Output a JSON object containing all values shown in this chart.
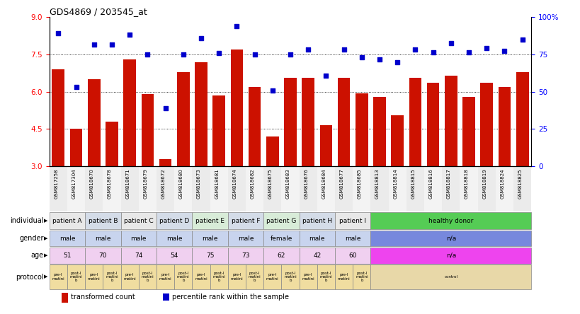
{
  "title": "GDS4869 / 203545_at",
  "samples": [
    "GSM817258",
    "GSM817304",
    "GSM818670",
    "GSM818678",
    "GSM818671",
    "GSM818679",
    "GSM818672",
    "GSM818680",
    "GSM818673",
    "GSM818681",
    "GSM818674",
    "GSM818682",
    "GSM818675",
    "GSM818683",
    "GSM818676",
    "GSM818684",
    "GSM818677",
    "GSM818685",
    "GSM818813",
    "GSM818814",
    "GSM818815",
    "GSM818816",
    "GSM818817",
    "GSM818818",
    "GSM818819",
    "GSM818824",
    "GSM818825"
  ],
  "bar_values": [
    6.9,
    4.5,
    6.5,
    4.8,
    7.3,
    5.9,
    3.3,
    6.8,
    7.2,
    5.85,
    7.7,
    6.2,
    4.2,
    6.55,
    6.55,
    4.65,
    6.55,
    5.95,
    5.8,
    5.05,
    6.55,
    6.35,
    6.65,
    5.8,
    6.35,
    6.2,
    6.8
  ],
  "dot_values": [
    8.35,
    6.2,
    7.9,
    7.9,
    8.3,
    7.5,
    5.35,
    7.5,
    8.15,
    7.55,
    8.65,
    7.5,
    6.05,
    7.5,
    7.7,
    6.65,
    7.7,
    7.4,
    7.3,
    7.2,
    7.7,
    7.6,
    7.95,
    7.6,
    7.75,
    7.65,
    8.1
  ],
  "bar_color": "#cc1100",
  "dot_color": "#0000cc",
  "ylim_left": [
    3,
    9
  ],
  "yticks_left": [
    3,
    4.5,
    6,
    7.5,
    9
  ],
  "ylim_right": [
    0,
    100
  ],
  "yticks_right": [
    0,
    25,
    50,
    75,
    100
  ],
  "ytick_labels_right": [
    "0",
    "25",
    "50",
    "75",
    "100%"
  ],
  "hlines": [
    4.5,
    6.0,
    7.5
  ],
  "individual_groups": [
    {
      "label": "patient A",
      "start": 0,
      "end": 2,
      "color": "#e8e8e8"
    },
    {
      "label": "patient B",
      "start": 2,
      "end": 4,
      "color": "#d4dce8"
    },
    {
      "label": "patient C",
      "start": 4,
      "end": 6,
      "color": "#e8e8e8"
    },
    {
      "label": "patient D",
      "start": 6,
      "end": 8,
      "color": "#d4dce8"
    },
    {
      "label": "patient E",
      "start": 8,
      "end": 10,
      "color": "#d8ecd8"
    },
    {
      "label": "patient F",
      "start": 10,
      "end": 12,
      "color": "#d4dce8"
    },
    {
      "label": "patient G",
      "start": 12,
      "end": 14,
      "color": "#d8ecd8"
    },
    {
      "label": "patient H",
      "start": 14,
      "end": 16,
      "color": "#d4dce8"
    },
    {
      "label": "patient I",
      "start": 16,
      "end": 18,
      "color": "#e8e8e8"
    },
    {
      "label": "healthy donor",
      "start": 18,
      "end": 27,
      "color": "#55cc55"
    }
  ],
  "gender_groups": [
    {
      "label": "male",
      "start": 0,
      "end": 2,
      "color": "#c8d4ee"
    },
    {
      "label": "male",
      "start": 2,
      "end": 4,
      "color": "#c8d4ee"
    },
    {
      "label": "male",
      "start": 4,
      "end": 6,
      "color": "#c8d4ee"
    },
    {
      "label": "male",
      "start": 6,
      "end": 8,
      "color": "#c8d4ee"
    },
    {
      "label": "male",
      "start": 8,
      "end": 10,
      "color": "#c8d4ee"
    },
    {
      "label": "male",
      "start": 10,
      "end": 12,
      "color": "#c8d4ee"
    },
    {
      "label": "female",
      "start": 12,
      "end": 14,
      "color": "#c8d4ee"
    },
    {
      "label": "male",
      "start": 14,
      "end": 16,
      "color": "#c8d4ee"
    },
    {
      "label": "male",
      "start": 16,
      "end": 18,
      "color": "#c8d4ee"
    },
    {
      "label": "n/a",
      "start": 18,
      "end": 27,
      "color": "#7788dd"
    }
  ],
  "age_groups": [
    {
      "label": "51",
      "start": 0,
      "end": 2,
      "color": "#f0d0f0"
    },
    {
      "label": "70",
      "start": 2,
      "end": 4,
      "color": "#f0d0f0"
    },
    {
      "label": "74",
      "start": 4,
      "end": 6,
      "color": "#f0d0f0"
    },
    {
      "label": "54",
      "start": 6,
      "end": 8,
      "color": "#f0d0f0"
    },
    {
      "label": "75",
      "start": 8,
      "end": 10,
      "color": "#f0d0f0"
    },
    {
      "label": "73",
      "start": 10,
      "end": 12,
      "color": "#f0d0f0"
    },
    {
      "label": "62",
      "start": 12,
      "end": 14,
      "color": "#f0d0f0"
    },
    {
      "label": "42",
      "start": 14,
      "end": 16,
      "color": "#f0d0f0"
    },
    {
      "label": "60",
      "start": 16,
      "end": 18,
      "color": "#f0d0f0"
    },
    {
      "label": "n/a",
      "start": 18,
      "end": 27,
      "color": "#ee44ee"
    }
  ],
  "protocol_groups": [
    {
      "label": "pre-I\nmatini",
      "start": 0,
      "end": 1,
      "color": "#f0dda0"
    },
    {
      "label": "post-I\nmatini\nb",
      "start": 1,
      "end": 2,
      "color": "#f0dda0"
    },
    {
      "label": "pre-I\nmatini",
      "start": 2,
      "end": 3,
      "color": "#f0dda0"
    },
    {
      "label": "post-I\nmatini\nb",
      "start": 3,
      "end": 4,
      "color": "#f0dda0"
    },
    {
      "label": "pre-I\nmatini",
      "start": 4,
      "end": 5,
      "color": "#f0dda0"
    },
    {
      "label": "post-I\nmatini\nb",
      "start": 5,
      "end": 6,
      "color": "#f0dda0"
    },
    {
      "label": "pre-I\nmatini",
      "start": 6,
      "end": 7,
      "color": "#f0dda0"
    },
    {
      "label": "post-I\nmatini\nb",
      "start": 7,
      "end": 8,
      "color": "#f0dda0"
    },
    {
      "label": "pre-I\nmatini",
      "start": 8,
      "end": 9,
      "color": "#f0dda0"
    },
    {
      "label": "post-I\nmatini\nb",
      "start": 9,
      "end": 10,
      "color": "#f0dda0"
    },
    {
      "label": "pre-I\nmatini",
      "start": 10,
      "end": 11,
      "color": "#f0dda0"
    },
    {
      "label": "post-I\nmatini\nb",
      "start": 11,
      "end": 12,
      "color": "#f0dda0"
    },
    {
      "label": "pre-I\nmatini",
      "start": 12,
      "end": 13,
      "color": "#f0dda0"
    },
    {
      "label": "post-I\nmatini\nb",
      "start": 13,
      "end": 14,
      "color": "#f0dda0"
    },
    {
      "label": "pre-I\nmatini",
      "start": 14,
      "end": 15,
      "color": "#f0dda0"
    },
    {
      "label": "post-I\nmatini\nb",
      "start": 15,
      "end": 16,
      "color": "#f0dda0"
    },
    {
      "label": "pre-I\nmatini",
      "start": 16,
      "end": 17,
      "color": "#f0dda0"
    },
    {
      "label": "post-I\nmatini\nb",
      "start": 17,
      "end": 18,
      "color": "#f0dda0"
    },
    {
      "label": "control",
      "start": 18,
      "end": 27,
      "color": "#e8d8a8"
    }
  ],
  "row_labels": [
    "individual",
    "gender",
    "age",
    "protocol"
  ],
  "legend_bar_label": "transformed count",
  "legend_dot_label": "percentile rank within the sample"
}
